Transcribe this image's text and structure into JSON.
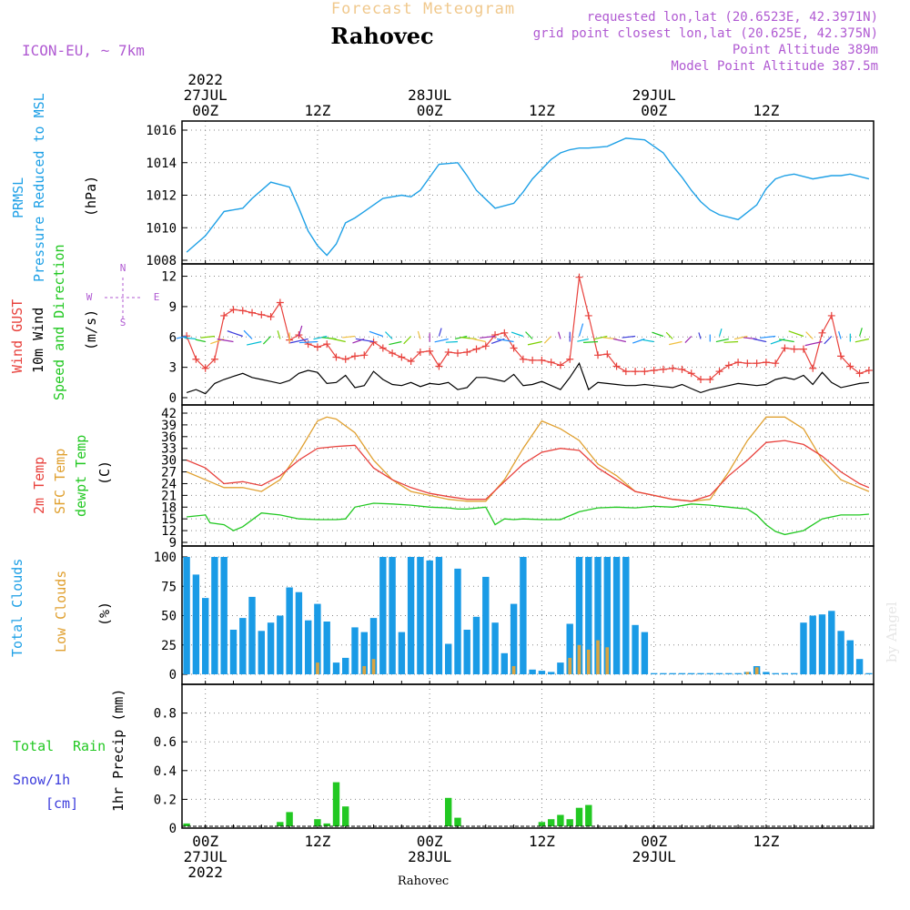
{
  "header": {
    "subtitle": "Forecast Meteogram",
    "location": "Rahovec",
    "model": "ICON-EU, ~ 7km",
    "info_lines": [
      "requested lon,lat (20.6523E, 42.3971N)",
      "grid point closest lon,lat (20.625E, 42.375N)",
      "Point Altitude 389m",
      "Model Point Altitude 387.5m"
    ],
    "watermark": "by Angel",
    "footer_location": "Rahovec"
  },
  "time_axis": {
    "top": [
      {
        "t": 0,
        "lines": [
          "2022",
          "27JUL",
          "00Z"
        ]
      },
      {
        "t": 12,
        "lines": [
          "12Z"
        ]
      },
      {
        "t": 24,
        "lines": [
          "28JUL",
          "00Z"
        ]
      },
      {
        "t": 36,
        "lines": [
          "12Z"
        ]
      },
      {
        "t": 48,
        "lines": [
          "29JUL",
          "00Z"
        ]
      },
      {
        "t": 60,
        "lines": [
          "12Z"
        ]
      }
    ],
    "bottom": [
      {
        "t": 0,
        "lines": [
          "00Z",
          "27JUL",
          "2022"
        ]
      },
      {
        "t": 12,
        "lines": [
          "12Z"
        ]
      },
      {
        "t": 24,
        "lines": [
          "00Z",
          "28JUL"
        ]
      },
      {
        "t": 36,
        "lines": [
          "12Z"
        ]
      },
      {
        "t": 48,
        "lines": [
          "00Z",
          "29JUL"
        ]
      },
      {
        "t": 60,
        "lines": [
          "12Z"
        ]
      }
    ],
    "range_hours": [
      -2.5,
      71.5
    ]
  },
  "panel_labels": {
    "pressure": {
      "left": [
        "PRMSL",
        "Pressure Reduced to MSL"
      ],
      "unit": "(hPa)"
    },
    "wind": {
      "left": [
        "Wind GUST",
        "10m Wind",
        "Speed and Direction"
      ],
      "unit": "(m/s)",
      "compass": {
        "n": "N",
        "s": "S",
        "w": "W",
        "e": "E"
      }
    },
    "temp": {
      "left": [
        "2m Temp",
        "SFC Temp",
        "dewpt Temp"
      ],
      "unit": "(C)"
    },
    "clouds": {
      "left": [
        "Total Clouds",
        "Low Clouds"
      ],
      "unit": "(%)"
    },
    "precip": {
      "left": [
        "Total",
        "Rain",
        "Snow/1h",
        "[cm]"
      ],
      "unit": "1hr Precip (mm)"
    }
  },
  "colors": {
    "pressure": "#1ea0e6",
    "gust": "#e8413c",
    "wind": "#000000",
    "temp2m": "#e8413c",
    "sfc": "#e0a030",
    "dewpt": "#22c822",
    "total_clouds": "#1a9be6",
    "low_clouds": "#d9a441",
    "rain": "#22c822",
    "snow": "#3c3cdc",
    "model": "#b05ad2",
    "title_orange": "#f0c88c"
  },
  "chart_data": [
    {
      "type": "line",
      "name": "pressure",
      "ylim": [
        1008,
        1016
      ],
      "yticks": [
        "1008",
        "1010",
        "1012",
        "1014",
        "1016"
      ],
      "series": [
        {
          "name": "PRMSL",
          "x": [
            -2,
            0,
            2,
            4,
            5,
            7,
            9,
            10,
            11,
            12,
            13,
            14,
            15,
            16,
            17,
            19,
            21,
            22,
            23,
            25,
            27,
            28,
            29,
            31,
            33,
            34,
            35,
            36,
            37,
            38,
            39,
            40,
            41,
            43,
            45,
            47,
            49,
            50,
            51,
            52,
            53,
            54,
            55,
            57,
            59,
            60,
            61,
            62,
            63,
            65,
            67,
            68,
            69,
            71
          ],
          "y": [
            1008.5,
            1009.5,
            1011.0,
            1011.2,
            1011.8,
            1012.8,
            1012.5,
            1011.2,
            1009.8,
            1008.9,
            1008.3,
            1009.0,
            1010.3,
            1010.6,
            1011.0,
            1011.8,
            1012.0,
            1011.9,
            1012.3,
            1013.9,
            1014.0,
            1013.2,
            1012.3,
            1011.2,
            1011.5,
            1012.2,
            1013.0,
            1013.6,
            1014.2,
            1014.6,
            1014.8,
            1014.9,
            1014.9,
            1015.0,
            1015.5,
            1015.4,
            1014.6,
            1013.8,
            1013.1,
            1012.3,
            1011.6,
            1011.1,
            1010.8,
            1010.5,
            1011.4,
            1012.4,
            1013.0,
            1013.2,
            1013.3,
            1013.0,
            1013.2,
            1013.2,
            1013.3,
            1013.0
          ]
        }
      ]
    },
    {
      "type": "line",
      "name": "wind",
      "ylim": [
        0,
        12.5
      ],
      "yticks": [
        "0",
        "3",
        "6",
        "9",
        "12"
      ],
      "series": [
        {
          "name": "Wind GUST",
          "x": [
            -2,
            -1,
            0,
            1,
            2,
            3,
            4,
            5,
            6,
            7,
            8,
            9,
            10,
            11,
            12,
            13,
            14,
            15,
            16,
            17,
            18,
            19,
            20,
            21,
            22,
            23,
            24,
            25,
            26,
            27,
            28,
            29,
            30,
            31,
            32,
            33,
            34,
            35,
            36,
            37,
            38,
            39,
            40,
            41,
            42,
            43,
            44,
            45,
            46,
            47,
            48,
            49,
            50,
            51,
            52,
            53,
            54,
            55,
            56,
            57,
            58,
            59,
            60,
            61,
            62,
            63,
            64,
            65,
            66,
            67,
            68,
            69,
            70,
            71
          ],
          "y": [
            6.1,
            3.8,
            2.9,
            3.8,
            8.1,
            8.7,
            8.6,
            8.4,
            8.2,
            8.0,
            9.4,
            5.7,
            6.2,
            5.3,
            5.0,
            5.3,
            4.0,
            3.8,
            4.1,
            4.2,
            5.5,
            4.9,
            4.4,
            4.0,
            3.6,
            4.5,
            4.6,
            3.1,
            4.5,
            4.4,
            4.5,
            4.8,
            5.1,
            6.2,
            6.4,
            4.9,
            3.8,
            3.7,
            3.7,
            3.5,
            3.2,
            3.8,
            11.9,
            8.1,
            4.2,
            4.3,
            3.1,
            2.6,
            2.6,
            2.6,
            2.7,
            2.8,
            2.9,
            2.8,
            2.4,
            1.8,
            1.8,
            2.6,
            3.2,
            3.5,
            3.4,
            3.4,
            3.5,
            3.4,
            4.9,
            4.8,
            4.8,
            2.9,
            6.4,
            8.1,
            4.1,
            3.1,
            2.4,
            2.7
          ]
        },
        {
          "name": "10m Wind",
          "x": [
            -2,
            -1,
            0,
            1,
            2,
            3,
            4,
            5,
            6,
            7,
            8,
            9,
            10,
            11,
            12,
            13,
            14,
            15,
            16,
            17,
            18,
            19,
            20,
            21,
            22,
            23,
            24,
            25,
            26,
            27,
            28,
            29,
            30,
            31,
            32,
            33,
            34,
            35,
            36,
            37,
            38,
            39,
            40,
            41,
            42,
            43,
            44,
            45,
            46,
            47,
            48,
            49,
            50,
            51,
            52,
            53,
            54,
            55,
            56,
            57,
            58,
            59,
            60,
            61,
            62,
            63,
            64,
            65,
            66,
            67,
            68,
            69,
            70,
            71
          ],
          "y": [
            0.5,
            0.8,
            0.4,
            1.4,
            1.8,
            2.1,
            2.4,
            2.0,
            1.8,
            1.6,
            1.4,
            1.7,
            2.4,
            2.7,
            2.5,
            1.4,
            1.5,
            2.2,
            1.0,
            1.2,
            2.6,
            1.8,
            1.3,
            1.2,
            1.5,
            1.1,
            1.4,
            1.3,
            1.5,
            0.8,
            1.0,
            2.0,
            2.0,
            1.8,
            1.6,
            2.3,
            1.2,
            1.3,
            1.6,
            1.2,
            0.8,
            2.0,
            3.4,
            0.8,
            1.5,
            1.4,
            1.3,
            1.2,
            1.2,
            1.3,
            1.2,
            1.1,
            1.0,
            1.3,
            0.9,
            0.5,
            0.8,
            1.0,
            1.2,
            1.4,
            1.3,
            1.2,
            1.3,
            1.8,
            2.0,
            1.8,
            2.2,
            1.3,
            2.5,
            1.5,
            1.0,
            1.2,
            1.4,
            1.5
          ]
        }
      ]
    },
    {
      "type": "line",
      "name": "temperature",
      "ylim": [
        9,
        42
      ],
      "yticks": [
        "9",
        "12",
        "15",
        "18",
        "21",
        "24",
        "27",
        "30",
        "33",
        "36",
        "39",
        "42"
      ],
      "series": [
        {
          "name": "2m Temp",
          "x": [
            -2,
            0,
            2,
            4,
            6,
            8,
            10,
            12,
            14,
            16,
            18,
            20,
            22,
            24,
            26,
            28,
            30,
            32,
            34,
            36,
            38,
            40,
            42,
            44,
            46,
            48,
            50,
            52,
            54,
            56,
            58,
            60,
            62,
            64,
            66,
            68,
            70,
            71
          ],
          "y": [
            30,
            28,
            24,
            24.5,
            23.5,
            26,
            30,
            33,
            33.5,
            33.8,
            28,
            25,
            23,
            21.5,
            20.7,
            20,
            20,
            24.5,
            29,
            32,
            33,
            32.5,
            28,
            25,
            22,
            21,
            20,
            19.5,
            21,
            26,
            30,
            34.5,
            35,
            34,
            31,
            27,
            24,
            23
          ]
        },
        {
          "name": "SFC Temp",
          "x": [
            -2,
            0,
            2,
            4,
            6,
            8,
            10,
            12,
            13,
            14,
            16,
            18,
            20,
            22,
            24,
            26,
            28,
            30,
            32,
            34,
            36,
            38,
            40,
            42,
            44,
            46,
            48,
            50,
            52,
            54,
            56,
            58,
            60,
            62,
            64,
            66,
            68,
            70,
            71
          ],
          "y": [
            27,
            25,
            23,
            23,
            22,
            25,
            32,
            40,
            41,
            40.5,
            37,
            30,
            25,
            22,
            21,
            20,
            19.5,
            19.5,
            25,
            33,
            40,
            38,
            35,
            29,
            26,
            22,
            21,
            20,
            19.5,
            20,
            27,
            35,
            41,
            41,
            38,
            30,
            25,
            23,
            22
          ]
        },
        {
          "name": "dewpt Temp",
          "x": [
            -2,
            0,
            0.5,
            2,
            3,
            4,
            6,
            8,
            10,
            12,
            14,
            15,
            16,
            18,
            20,
            22,
            24,
            26,
            27,
            28,
            30,
            31,
            32,
            33,
            34,
            36,
            38,
            40,
            42,
            44,
            46,
            48,
            50,
            52,
            54,
            56,
            58,
            59,
            60,
            61,
            62,
            64,
            66,
            68,
            70,
            71
          ],
          "y": [
            15.5,
            16,
            14,
            13.5,
            12,
            13,
            16.5,
            16,
            15,
            14.8,
            14.8,
            15,
            18,
            19,
            18.8,
            18.5,
            18,
            17.8,
            17.5,
            17.5,
            18,
            13.5,
            15,
            14.8,
            15,
            14.8,
            14.8,
            16.8,
            17.8,
            18,
            17.8,
            18.2,
            18,
            18.8,
            18.5,
            18,
            17.5,
            16,
            13.5,
            11.8,
            11,
            12,
            15,
            16,
            16,
            16.2
          ]
        }
      ]
    },
    {
      "type": "bar",
      "name": "clouds",
      "ylim": [
        0,
        100
      ],
      "yticks": [
        "0",
        "25",
        "50",
        "75",
        "100"
      ],
      "x": [
        -2,
        -1,
        0,
        1,
        2,
        3,
        4,
        5,
        6,
        7,
        8,
        9,
        10,
        11,
        12,
        13,
        14,
        15,
        16,
        17,
        18,
        19,
        20,
        21,
        22,
        23,
        24,
        25,
        26,
        27,
        28,
        29,
        30,
        31,
        32,
        33,
        34,
        35,
        36,
        37,
        38,
        39,
        40,
        41,
        42,
        43,
        44,
        45,
        46,
        47,
        48,
        49,
        50,
        51,
        52,
        53,
        54,
        55,
        56,
        57,
        58,
        59,
        60,
        61,
        62,
        63,
        64,
        65,
        66,
        67,
        68,
        69,
        70,
        71
      ],
      "series": [
        {
          "name": "Total Clouds",
          "values": [
            100,
            85,
            65,
            100,
            100,
            38,
            48,
            66,
            37,
            44,
            50,
            74,
            70,
            46,
            60,
            45,
            10,
            14,
            40,
            36,
            48,
            100,
            100,
            36,
            100,
            100,
            97,
            100,
            26,
            90,
            38,
            49,
            83,
            44,
            18,
            60,
            100,
            4,
            3,
            2,
            10,
            43,
            100,
            100,
            100,
            100,
            100,
            100,
            42,
            36,
            1,
            1,
            1,
            1,
            1,
            1,
            1,
            1,
            1,
            1,
            2,
            7,
            2,
            1,
            1,
            1,
            44,
            50,
            51,
            54,
            37,
            29,
            13,
            1
          ],
          "low": [
            0,
            0,
            0,
            0,
            0,
            0,
            0,
            0,
            0,
            0,
            0,
            0,
            0,
            0,
            10,
            0,
            0,
            0,
            0,
            7,
            13,
            0,
            0,
            0,
            0,
            0,
            0,
            0,
            0,
            0,
            0,
            0,
            0,
            0,
            0,
            7,
            0,
            0,
            0,
            0,
            0,
            14,
            25,
            21,
            29,
            23,
            0,
            0,
            0,
            0,
            0,
            0,
            0,
            0,
            0,
            0,
            0,
            0,
            0,
            0,
            2,
            6,
            0,
            0,
            0,
            0,
            0,
            0,
            0,
            0,
            0,
            0,
            0,
            0
          ]
        }
      ]
    },
    {
      "type": "bar",
      "name": "precip",
      "ylim": [
        0,
        1.0
      ],
      "yticks": [
        "0",
        "0.2",
        "0.4",
        "0.6",
        "0.8"
      ],
      "x": [
        -2,
        8,
        9,
        12,
        13,
        14,
        15,
        26,
        27,
        36,
        37,
        38,
        39,
        40,
        41
      ],
      "series": [
        {
          "name": "Total Rain",
          "values": [
            0.02,
            0.03,
            0.1,
            0.05,
            0.02,
            0.31,
            0.14,
            0.2,
            0.06,
            0.03,
            0.05,
            0.08,
            0.05,
            0.13,
            0.15
          ]
        }
      ]
    }
  ]
}
